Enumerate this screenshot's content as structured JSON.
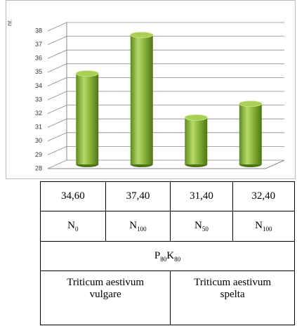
{
  "chart_data": {
    "type": "bar3d",
    "y_label": "nr.",
    "categories": [
      null,
      null,
      null,
      null
    ],
    "values": [
      34.6,
      37.4,
      31.4,
      32.4
    ],
    "color": "#8cb83c",
    "ylim": [
      28,
      38
    ],
    "yticks": [
      28,
      29,
      30,
      31,
      32,
      33,
      34,
      35,
      36,
      37,
      38
    ],
    "grid": true
  },
  "table": {
    "rows": [
      [
        "34,60",
        "37,40",
        "31,40",
        "32,40"
      ],
      [
        {
          "text": "N",
          "sub": "0"
        },
        {
          "text": "N",
          "sub": "100"
        },
        {
          "text": "N",
          "sub": "50"
        },
        {
          "text": "N",
          "sub": "100"
        }
      ],
      [
        {
          "text": "P",
          "sub": "80"
        },
        {
          "text": "K",
          "sub": "80"
        }
      ],
      [
        "Triticum aestivum vulgare",
        "Triticum aestivum spelta"
      ]
    ]
  }
}
